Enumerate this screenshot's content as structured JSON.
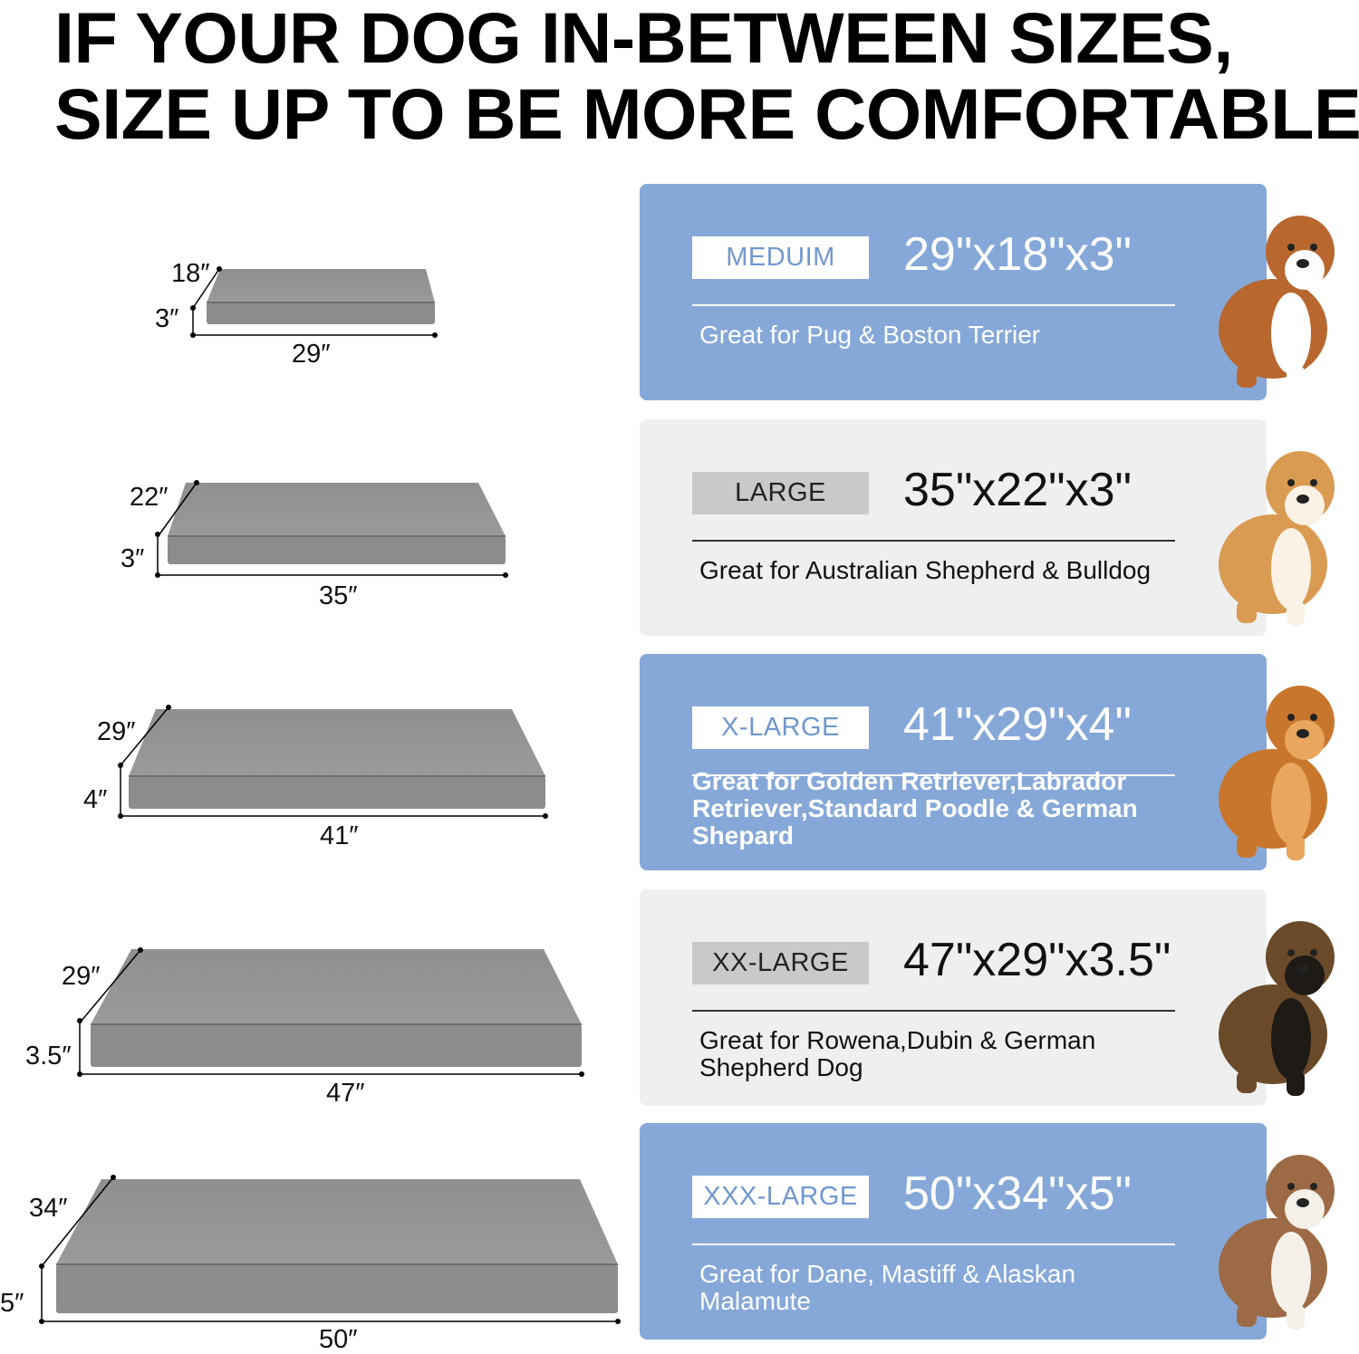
{
  "headline": {
    "line1": "IF YOUR DOG IN-BETWEEN SIZES,",
    "line2": "SIZE UP TO BE MORE COMFORTABLE"
  },
  "colors": {
    "blue_card": "#86a8d8",
    "grey_card": "#efefef",
    "bed": "#8a8a8a"
  },
  "beds": [
    {
      "depth": "18″",
      "height": "3″",
      "width": "29″"
    },
    {
      "depth": "22″",
      "height": "3″",
      "width": "35″"
    },
    {
      "depth": "29″",
      "height": "4″",
      "width": "41″"
    },
    {
      "depth": "29″",
      "height": "3.5″",
      "width": "47″"
    },
    {
      "depth": "34″",
      "height": "5″",
      "width": "50″"
    }
  ],
  "cards": [
    {
      "label": "MEDUIM",
      "size": "29\"x18\"x3\"",
      "description": "Great for Pug & Boston Terrier",
      "dog": "bulldog"
    },
    {
      "label": "LARGE",
      "size": "35\"x22\"x3\"",
      "description": "Great for Australian Shepherd & Bulldog",
      "dog": "shiba"
    },
    {
      "label": "X-LARGE",
      "size": "41\"x29\"x4\"",
      "description": "Great for Golden Retriever,Labrador Retriever,Standard Poodle & German Shepard",
      "dog": "golden-retriever"
    },
    {
      "label": "XX-LARGE",
      "size": "47\"x29\"x3.5\"",
      "description": "Great for Rowena,Dubin & German Shepherd Dog",
      "dog": "german-shepherd"
    },
    {
      "label": "XXX-LARGE",
      "size": "50\"x34\"x5\"",
      "description": "Great for Dane, Mastiff & Alaskan Malamute",
      "dog": "pit-bull"
    }
  ]
}
